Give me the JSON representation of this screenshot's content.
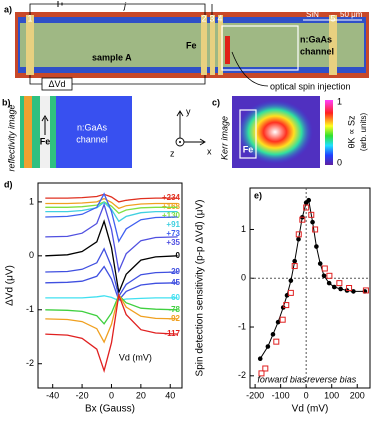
{
  "panels": {
    "a": {
      "label": "a)",
      "contacts": [
        "1",
        "2",
        "3",
        "4",
        "5"
      ],
      "current": "j",
      "material": "SiN",
      "scale": "50 μm",
      "fe": "Fe",
      "sample": "sample A",
      "channel": [
        "n:GaAs",
        "channel"
      ],
      "voltage": "ΔVd",
      "injection": "optical spin injection"
    },
    "b": {
      "label": "b)",
      "title": "reflectivity image",
      "fe": "Fe",
      "channel": [
        "n:GaAs",
        "channel"
      ]
    },
    "axes": {
      "y": "y",
      "z": "z",
      "x": "x"
    },
    "c": {
      "label": "c)",
      "title": "Kerr image",
      "fe": "Fe",
      "colorbar_ticks": [
        1,
        0
      ],
      "colorbar_label": "θK ∝ Sz",
      "colorbar_unit": "(arb. units)"
    }
  },
  "chart_data": [
    {
      "type": "line",
      "panel_label": "d)",
      "xlabel": "Bx (Gauss)",
      "ylabel": "ΔVd (μV)",
      "annotation": "Vd (mV)",
      "x": [
        -45,
        -30,
        -20,
        -10,
        -5,
        0,
        5,
        10,
        20,
        30,
        45
      ],
      "xlim": [
        -50,
        48
      ],
      "xticks": [
        -40,
        -20,
        0,
        20,
        40
      ],
      "ylim": [
        -2.45,
        1.35
      ],
      "yticks": [
        1,
        0,
        -1,
        -2
      ],
      "series": [
        {
          "name": "+234",
          "color": "#e03020",
          "values": [
            1.07,
            1.07,
            1.08,
            1.1,
            1.14,
            1.09,
            1.0,
            1.03,
            1.06,
            1.07,
            1.07
          ]
        },
        {
          "name": "+168",
          "color": "#f0a020",
          "values": [
            0.97,
            0.97,
            0.98,
            1.0,
            1.06,
            0.99,
            0.88,
            0.93,
            0.96,
            0.97,
            0.97
          ]
        },
        {
          "name": "+130",
          "color": "#80e040",
          "values": [
            0.9,
            0.9,
            0.91,
            0.94,
            1.0,
            0.92,
            0.79,
            0.85,
            0.89,
            0.9,
            0.9
          ]
        },
        {
          "name": "+91",
          "color": "#40d0e0",
          "values": [
            0.82,
            0.82,
            0.84,
            0.89,
            0.99,
            0.86,
            0.64,
            0.73,
            0.8,
            0.82,
            0.82
          ]
        },
        {
          "name": "+73",
          "color": "#4060f0",
          "values": [
            0.72,
            0.73,
            0.77,
            0.9,
            1.15,
            0.82,
            0.27,
            0.5,
            0.67,
            0.71,
            0.72
          ]
        },
        {
          "name": "+35",
          "color": "#5050e0",
          "values": [
            0.35,
            0.36,
            0.42,
            0.6,
            0.95,
            0.49,
            -0.28,
            0.04,
            0.28,
            0.34,
            0.35
          ]
        },
        {
          "name": "0",
          "color": "#000000",
          "values": [
            0,
            0.02,
            0.08,
            0.26,
            0.64,
            0.15,
            -0.68,
            -0.34,
            -0.08,
            -0.02,
            0
          ]
        },
        {
          "name": "-29",
          "color": "#4050e0",
          "values": [
            -0.3,
            -0.29,
            -0.25,
            -0.13,
            0.13,
            -0.2,
            -0.75,
            -0.53,
            -0.35,
            -0.31,
            -0.3
          ]
        },
        {
          "name": "-45",
          "color": "#4050e0",
          "values": [
            -0.5,
            -0.49,
            -0.47,
            -0.38,
            -0.2,
            -0.43,
            -0.82,
            -0.66,
            -0.54,
            -0.51,
            -0.5
          ]
        },
        {
          "name": "-60",
          "color": "#40e0f0",
          "values": [
            -0.78,
            -0.78,
            -0.78,
            -0.76,
            -0.74,
            -0.77,
            -0.83,
            -0.8,
            -0.79,
            -0.78,
            -0.78
          ]
        },
        {
          "name": "-78",
          "color": "#40d040",
          "values": [
            -1,
            -1.01,
            -1.03,
            -1.11,
            -1.26,
            -1.06,
            -0.73,
            -0.87,
            -0.97,
            -0.99,
            -1
          ]
        },
        {
          "name": "-92",
          "color": "#f0a020",
          "values": [
            -1.17,
            -1.18,
            -1.22,
            -1.35,
            -1.6,
            -1.27,
            -0.72,
            -0.95,
            -1.12,
            -1.16,
            -1.17
          ]
        },
        {
          "name": "-117",
          "color": "#e02020",
          "values": [
            -1.45,
            -1.47,
            -1.53,
            -1.73,
            -2.13,
            -1.61,
            -0.73,
            -1.09,
            -1.37,
            -1.43,
            -1.45
          ]
        }
      ]
    },
    {
      "type": "scatter",
      "panel_label": "e)",
      "xlabel": "Vd (mV)",
      "ylabel": "Spin detection sensitivity (p-p ΔVd) (μV)",
      "annotations": [
        "forward bias",
        "reverse bias"
      ],
      "xlim": [
        -220,
        250
      ],
      "xticks": [
        -200,
        -100,
        0,
        100,
        200
      ],
      "ylim": [
        -2.25,
        1.85
      ],
      "yticks": [
        -2,
        -1,
        0,
        1
      ],
      "series": [
        {
          "color": "#000000",
          "marker": "circle",
          "line": true,
          "x": [
            -180,
            -150,
            -130,
            -110,
            -90,
            -75,
            -60,
            -45,
            -30,
            -15,
            0,
            10,
            25,
            40,
            55,
            70,
            90,
            110,
            135,
            160,
            185,
            230
          ],
          "values": [
            -1.65,
            -1.4,
            -1.15,
            -0.9,
            -0.6,
            -0.35,
            -0.05,
            0.35,
            0.8,
            1.25,
            1.55,
            1.6,
            1.15,
            0.65,
            0.3,
            0.05,
            -0.1,
            -0.18,
            -0.22,
            -0.25,
            -0.27,
            -0.27
          ]
        },
        {
          "color": "#e02020",
          "marker": "square",
          "line": false,
          "x": [
            -175,
            -160,
            -117,
            -92,
            -78,
            -60,
            -45,
            -29,
            -15,
            0,
            20,
            35,
            73,
            91,
            130,
            168,
            234
          ],
          "values": [
            -1.95,
            -1.85,
            -1.3,
            -0.85,
            -0.55,
            -0.3,
            0.25,
            0.9,
            1.2,
            1.45,
            1.3,
            1.0,
            0.2,
            0.05,
            -0.1,
            -0.2,
            -0.25
          ]
        }
      ]
    }
  ]
}
